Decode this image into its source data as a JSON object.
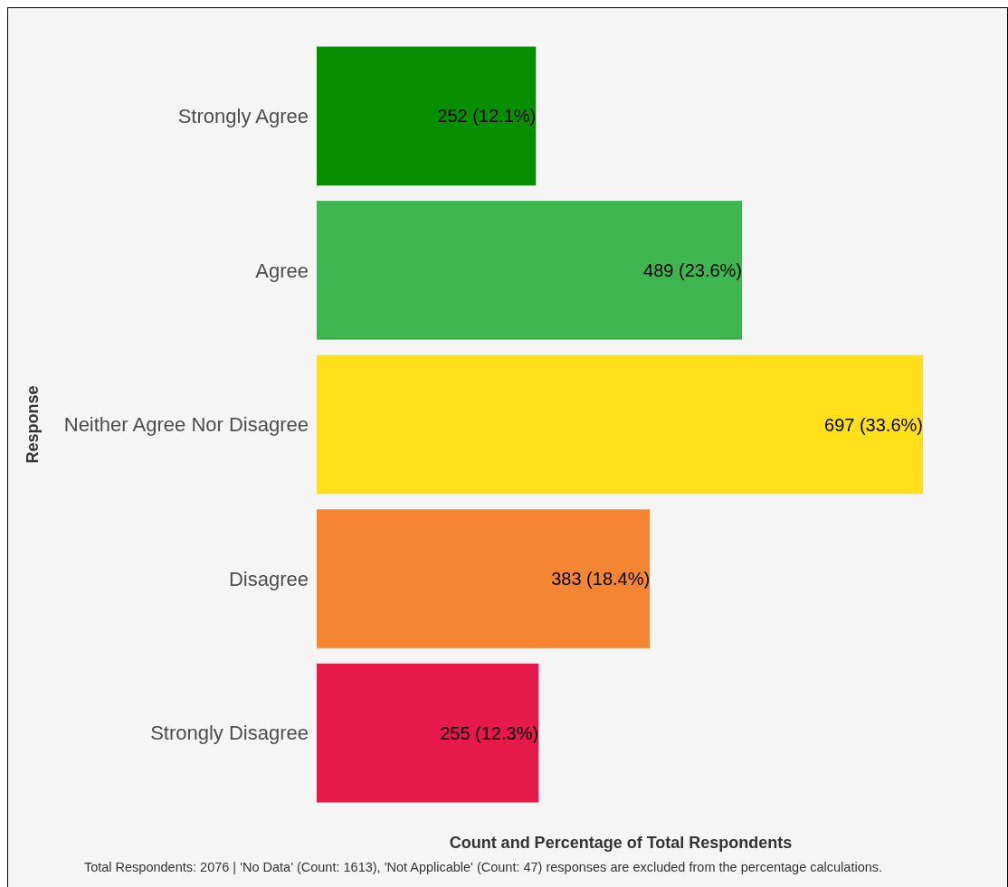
{
  "chart_data": {
    "type": "bar",
    "orientation": "horizontal",
    "categories": [
      "Strongly Agree",
      "Agree",
      "Neither Agree Nor Disagree",
      "Disagree",
      "Strongly Disagree"
    ],
    "values": [
      252,
      489,
      697,
      383,
      255
    ],
    "colors": [
      "#078f00",
      "#3fb54f",
      "#ffe01a",
      "#f48533",
      "#e5194a"
    ],
    "value_labels": [
      "252 (12.1%)",
      "489 (23.6%)",
      "697 (33.6%)",
      "383 (18.4%)",
      "255 (12.3%)"
    ],
    "xlabel": "Count and Percentage of Total Respondents",
    "ylabel": "Response",
    "tick_labels": "y",
    "annotations": [
      "Total Respondents: 2076 | 'No Data' (Count: 1613), 'Not Applicable' (Count: 47) responses are excluded from the percentage calculations."
    ]
  }
}
